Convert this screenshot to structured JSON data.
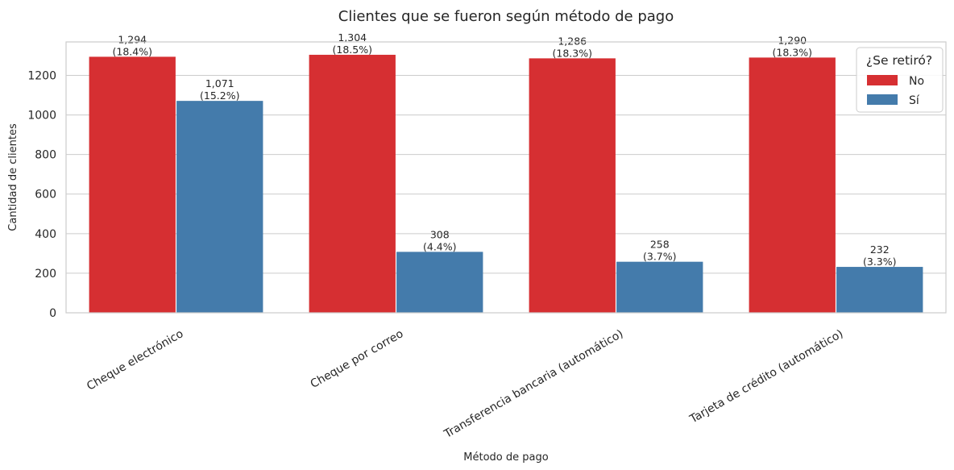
{
  "chart_data": {
    "type": "bar",
    "title": "Clientes que se fueron según método de pago",
    "xlabel": "Método de pago",
    "ylabel": "Cantidad de clientes",
    "categories": [
      "Cheque electrónico",
      "Cheque por correo",
      "Transferencia bancaria (automático)",
      "Tarjeta de crédito (automático)"
    ],
    "series": [
      {
        "name": "No",
        "color": "#d62f32",
        "values": [
          1294,
          1304,
          1286,
          1290
        ],
        "labels": [
          "1,294",
          "1,304",
          "1,286",
          "1,290"
        ],
        "percents": [
          "(18.4%)",
          "(18.5%)",
          "(18.3%)",
          "(18.3%)"
        ]
      },
      {
        "name": "Sí",
        "color": "#447bab",
        "values": [
          1071,
          308,
          258,
          232
        ],
        "labels": [
          "1,071",
          "308",
          "258",
          "232"
        ],
        "percents": [
          "(15.2%)",
          "(4.4%)",
          "(3.7%)",
          "(3.3%)"
        ]
      }
    ],
    "yticks": [
      0,
      200,
      400,
      600,
      800,
      1000,
      1200
    ],
    "ylim": [
      0,
      1369
    ],
    "grid": true,
    "legend": {
      "title": "¿Se retiró?",
      "position": "top-right"
    }
  }
}
